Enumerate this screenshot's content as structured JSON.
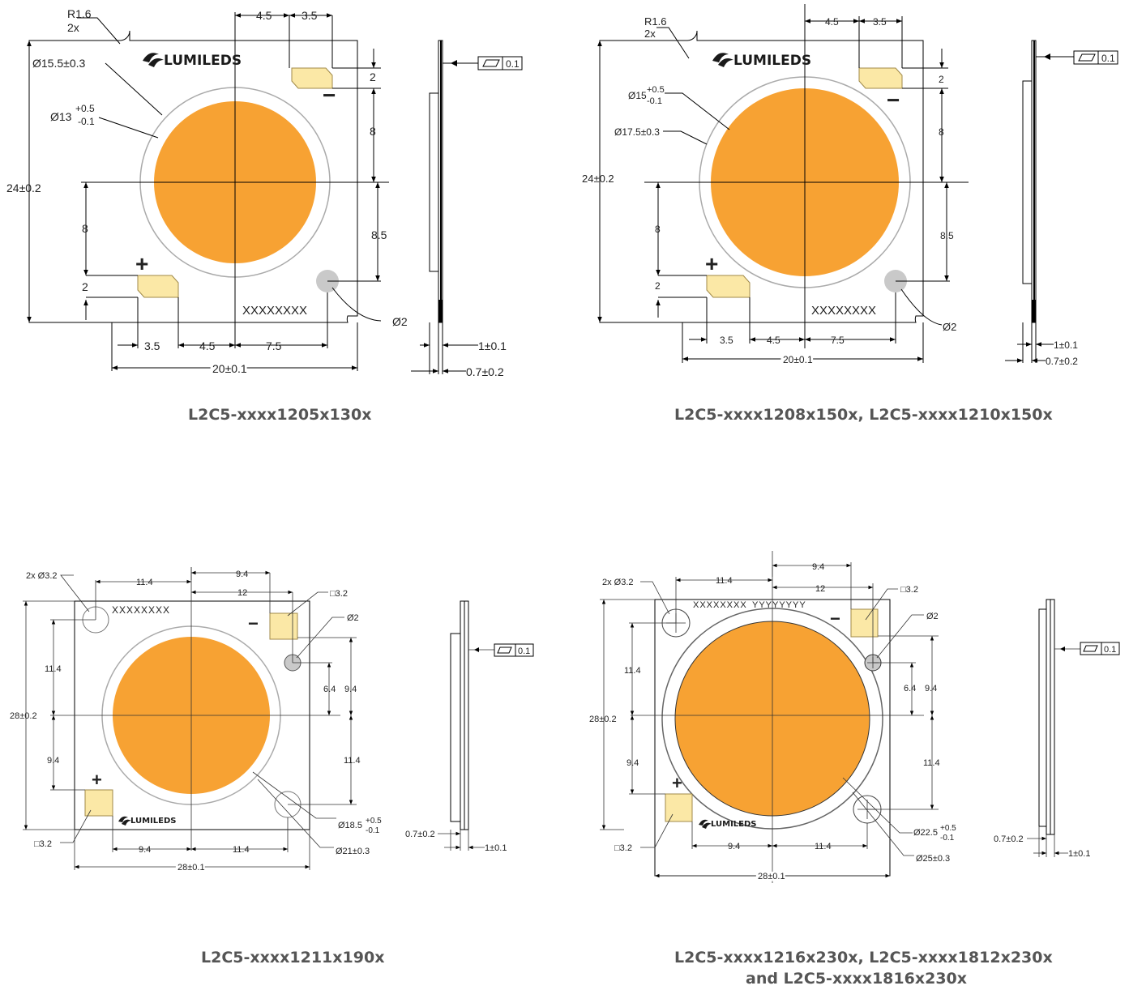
{
  "colors": {
    "die": "#f7a233",
    "die_dark": "#f2941c",
    "pad": "#fbe8a6",
    "pad_stroke": "#a08a4a",
    "hole": "#c9c9c9",
    "ring": "#999999"
  },
  "logo_text": "LUMILEDS",
  "marking": "XXXXXXXX",
  "marking2": "YYYYYYYY",
  "flatness": "0.1",
  "d1": {
    "caption": "L2C5-xxxx1205x130x",
    "r_label": "R1.6",
    "r_count": "2x",
    "ring": "Ø15.5±0.3",
    "die": "Ø13",
    "die_tol_up": "+0.5",
    "die_tol_dn": "-0.1",
    "height": "24±0.2",
    "width": "20±0.1",
    "pad_offset": "4.5",
    "pad_w": "3.5",
    "top_pad_h": "2",
    "top_gap": "8",
    "left_8": "8",
    "left_2": "2",
    "right_85": "8.5",
    "bottom_35": "3.5",
    "bottom_45": "4.5",
    "bottom_75": "7.5",
    "hole": "Ø2",
    "thick1": "1±0.1",
    "thick2": "0.7±0.2",
    "plus": "+",
    "minus": "−"
  },
  "d2": {
    "caption": "L2C5-xxxx1208x150x, L2C5-xxxx1210x150x",
    "r_label": "R1.6",
    "r_count": "2x",
    "die": "Ø15",
    "die_tol_up": "+0.5",
    "die_tol_dn": "-0.1",
    "ring": "Ø17.5±0.3",
    "height": "24±0.2",
    "width": "20±0.1",
    "top_45": "4.5",
    "top_35": "3.5",
    "right_2": "2",
    "right_8": "8",
    "right_85": "8.5",
    "left_8": "8",
    "left_2": "2",
    "bottom_35": "3.5",
    "bottom_45": "4.5",
    "bottom_75": "7.5",
    "hole": "Ø2",
    "thick1": "1±0.1",
    "thick2": "0.7±0.2",
    "plus": "+",
    "minus": "−"
  },
  "d3": {
    "caption": "L2C5-xxxx1211x190x",
    "holes": "2x Ø3.2",
    "top_114": "11.4",
    "top_94": "9.4",
    "top_12": "12",
    "pad_sq": "□3.2",
    "hole_sm": "Ø2",
    "left_114": "11.4",
    "height": "28±0.2",
    "left_94": "9.4",
    "right_64": "6.4",
    "right_94": "9.4",
    "right_114": "11.4",
    "die": "Ø18.5",
    "die_tol_up": "+0.5",
    "die_tol_dn": "-0.1",
    "ring": "Ø21±0.3",
    "pad_sq2": "□3.2",
    "bottom_94": "9.4",
    "bottom_114": "11.4",
    "width": "28±0.1",
    "thick2": "0.7±0.2",
    "thick1": "1±0.1",
    "plus": "+",
    "minus": "−"
  },
  "d4": {
    "caption1": "L2C5-xxxx1216x230x, L2C5-xxxx1812x230x",
    "caption2": "and L2C5-xxxx1816x230x",
    "holes": "2x Ø3.2",
    "top_114": "11.4",
    "top_94": "9.4",
    "top_12": "12",
    "pad_sq": "□3.2",
    "hole_sm": "Ø2",
    "left_114": "11.4",
    "height": "28±0.2",
    "left_94": "9.4",
    "right_64": "6.4",
    "right_94": "9.4",
    "right_114": "11.4",
    "die": "Ø22.5",
    "die_tol_up": "+0.5",
    "die_tol_dn": "-0.1",
    "ring": "Ø25±0.3",
    "pad_sq2": "□3.2",
    "bottom_94": "9.4",
    "bottom_114": "11.4",
    "width": "28±0.1",
    "thick2": "0.7±0.2",
    "thick1": "1±0.1",
    "plus": "+",
    "minus": "−"
  }
}
